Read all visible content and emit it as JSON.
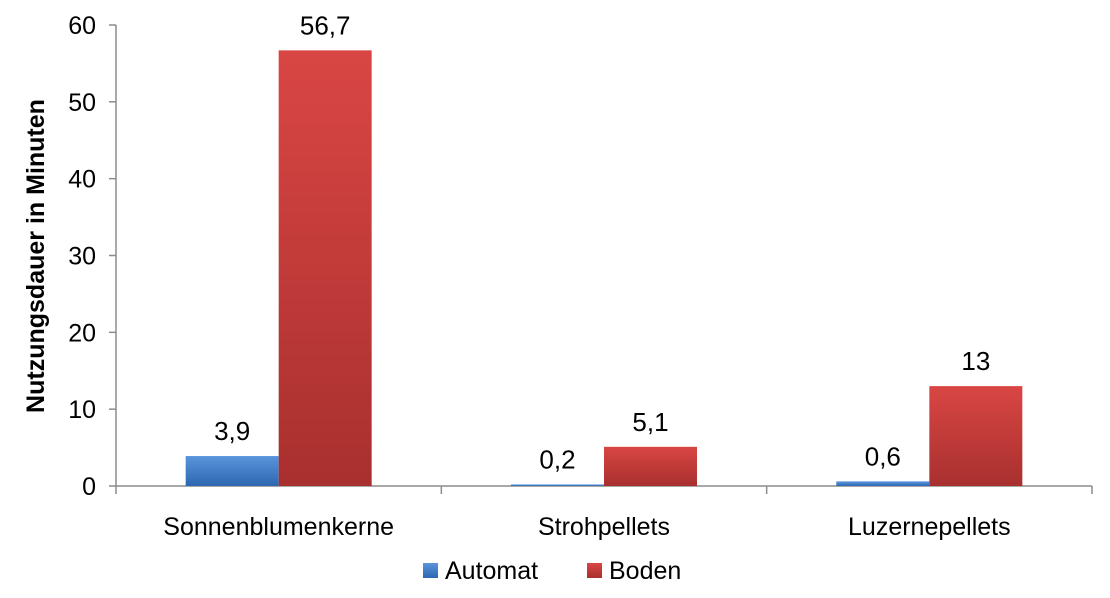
{
  "chart_data": {
    "type": "bar",
    "title": "",
    "xlabel": "",
    "ylabel": "Nutzungsdauer in Minuten",
    "ylim": [
      0,
      60
    ],
    "yticks": [
      "0",
      "10",
      "20",
      "30",
      "40",
      "50",
      "60"
    ],
    "categories": [
      "Sonnenblumenkerne",
      "Strohpellets",
      "Luzernepellets"
    ],
    "series": [
      {
        "name": "Automat",
        "color": "#3f7fca",
        "values": [
          3.9,
          0.2,
          0.6
        ],
        "labels": [
          "3,9",
          "0,2",
          "0,6"
        ]
      },
      {
        "name": "Boden",
        "color": "#c83a38",
        "values": [
          56.7,
          5.1,
          13
        ],
        "labels": [
          "56,7",
          "5,1",
          "13"
        ]
      }
    ],
    "legend": "bottom-center",
    "grid": false
  }
}
